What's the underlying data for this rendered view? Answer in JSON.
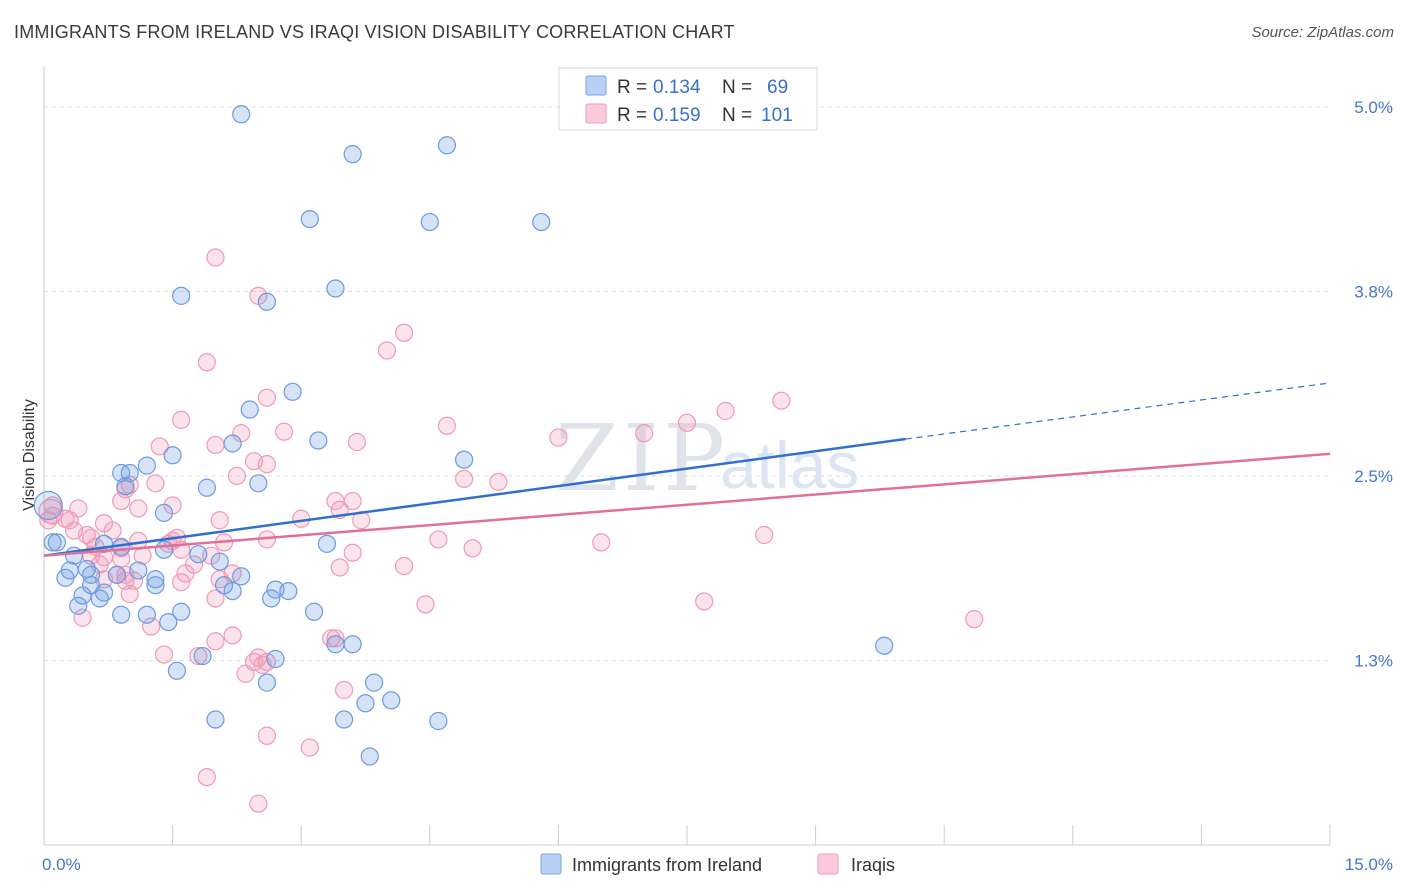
{
  "title": "IMMIGRANTS FROM IRELAND VS IRAQI VISION DISABILITY CORRELATION CHART",
  "source": "Source: ZipAtlas.com",
  "watermark": {
    "zip": "ZIP",
    "atlas": "atlas"
  },
  "legend": {
    "rows": [
      {
        "r_label": "R = ",
        "r_value": "0.134",
        "n_label": "N = ",
        "n_value": "69"
      },
      {
        "r_label": "R = ",
        "r_value": "0.159",
        "n_label": "N = ",
        "n_value": "101"
      }
    ]
  },
  "chart_data": {
    "type": "scatter",
    "title": "IMMIGRANTS FROM IRELAND VS IRAQI VISION DISABILITY CORRELATION CHART",
    "xlabel": "",
    "ylabel": "Vision Disability",
    "xlim": [
      0,
      15
    ],
    "ylim": [
      0,
      5.25
    ],
    "x_tick_labels": [
      {
        "value": 0,
        "label": "0.0%"
      },
      {
        "value": 15,
        "label": "15.0%"
      }
    ],
    "y_ticks": [
      {
        "value": 1.25,
        "label": "1.3%"
      },
      {
        "value": 2.5,
        "label": "2.5%"
      },
      {
        "value": 3.75,
        "label": "3.8%"
      },
      {
        "value": 5.0,
        "label": "5.0%"
      }
    ],
    "grid": "horizontal dashed",
    "legend_position": "top-center",
    "colors": {
      "ireland": "#6b9be0",
      "iraqis": "#f09ab8",
      "ireland_line": "#2f6fcf",
      "iraqis_line": "#e0709a"
    },
    "series": [
      {
        "name": "Immigrants from Ireland",
        "trend": {
          "x": [
            0,
            10.05
          ],
          "y": [
            1.96,
            2.75
          ],
          "dashed_to": [
            15,
            3.13
          ]
        },
        "points": [
          [
            2.3,
            4.95
          ],
          [
            3.6,
            4.68
          ],
          [
            4.7,
            4.74
          ],
          [
            3.1,
            4.24
          ],
          [
            4.5,
            4.22
          ],
          [
            5.8,
            4.22
          ],
          [
            3.4,
            3.77
          ],
          [
            1.6,
            3.72
          ],
          [
            2.6,
            3.68
          ],
          [
            2.9,
            3.07
          ],
          [
            2.4,
            2.95
          ],
          [
            3.2,
            2.74
          ],
          [
            2.2,
            2.72
          ],
          [
            1.5,
            2.64
          ],
          [
            4.9,
            2.61
          ],
          [
            1.2,
            2.57
          ],
          [
            1.0,
            2.52
          ],
          [
            0.9,
            2.52
          ],
          [
            2.5,
            2.45
          ],
          [
            1.9,
            2.42
          ],
          [
            0.95,
            2.43
          ],
          [
            1.4,
            2.25
          ],
          [
            0.15,
            2.05
          ],
          [
            0.1,
            2.05
          ],
          [
            0.35,
            1.96
          ],
          [
            0.7,
            2.04
          ],
          [
            0.9,
            2.02
          ],
          [
            1.4,
            2.0
          ],
          [
            1.8,
            1.97
          ],
          [
            3.3,
            2.04
          ],
          [
            2.05,
            1.92
          ],
          [
            0.3,
            1.86
          ],
          [
            0.5,
            1.87
          ],
          [
            0.55,
            1.83
          ],
          [
            1.1,
            1.86
          ],
          [
            0.25,
            1.81
          ],
          [
            2.3,
            1.82
          ],
          [
            1.3,
            1.8
          ],
          [
            0.85,
            1.83
          ],
          [
            0.55,
            1.76
          ],
          [
            1.3,
            1.76
          ],
          [
            2.1,
            1.76
          ],
          [
            2.7,
            1.73
          ],
          [
            2.85,
            1.72
          ],
          [
            0.45,
            1.69
          ],
          [
            0.7,
            1.71
          ],
          [
            0.65,
            1.67
          ],
          [
            2.2,
            1.72
          ],
          [
            2.65,
            1.67
          ],
          [
            0.4,
            1.62
          ],
          [
            0.9,
            1.56
          ],
          [
            1.2,
            1.56
          ],
          [
            1.6,
            1.58
          ],
          [
            3.15,
            1.58
          ],
          [
            1.45,
            1.51
          ],
          [
            3.4,
            1.36
          ],
          [
            3.6,
            1.36
          ],
          [
            9.8,
            1.35
          ],
          [
            1.85,
            1.28
          ],
          [
            2.7,
            1.26
          ],
          [
            1.55,
            1.18
          ],
          [
            3.85,
            1.1
          ],
          [
            2.6,
            1.1
          ],
          [
            4.05,
            0.98
          ],
          [
            3.75,
            0.96
          ],
          [
            2.0,
            0.85
          ],
          [
            3.5,
            0.85
          ],
          [
            4.6,
            0.84
          ],
          [
            3.8,
            0.6
          ]
        ]
      },
      {
        "name": "Iraqis",
        "trend": {
          "x": [
            0,
            15
          ],
          "y": [
            1.96,
            2.65
          ]
        },
        "points": [
          [
            2.0,
            3.98
          ],
          [
            2.5,
            3.72
          ],
          [
            4.2,
            3.47
          ],
          [
            4.0,
            3.35
          ],
          [
            1.9,
            3.27
          ],
          [
            2.6,
            3.03
          ],
          [
            8.6,
            3.01
          ],
          [
            7.95,
            2.94
          ],
          [
            1.6,
            2.88
          ],
          [
            4.7,
            2.84
          ],
          [
            7.5,
            2.86
          ],
          [
            2.3,
            2.79
          ],
          [
            2.8,
            2.8
          ],
          [
            6.0,
            2.76
          ],
          [
            7.0,
            2.79
          ],
          [
            3.65,
            2.73
          ],
          [
            1.35,
            2.7
          ],
          [
            2.0,
            2.71
          ],
          [
            2.45,
            2.6
          ],
          [
            2.6,
            2.58
          ],
          [
            2.25,
            2.5
          ],
          [
            4.9,
            2.48
          ],
          [
            5.3,
            2.46
          ],
          [
            1.3,
            2.45
          ],
          [
            1.0,
            2.44
          ],
          [
            0.95,
            2.41
          ],
          [
            0.9,
            2.33
          ],
          [
            0.1,
            2.3
          ],
          [
            1.5,
            2.3
          ],
          [
            1.1,
            2.28
          ],
          [
            3.4,
            2.33
          ],
          [
            3.6,
            2.33
          ],
          [
            0.4,
            2.28
          ],
          [
            3.45,
            2.27
          ],
          [
            0.1,
            2.23
          ],
          [
            0.25,
            2.21
          ],
          [
            0.05,
            2.2
          ],
          [
            0.3,
            2.2
          ],
          [
            3.7,
            2.2
          ],
          [
            2.05,
            2.2
          ],
          [
            3.0,
            2.21
          ],
          [
            0.7,
            2.18
          ],
          [
            0.35,
            2.13
          ],
          [
            0.8,
            2.13
          ],
          [
            0.5,
            2.1
          ],
          [
            0.55,
            2.08
          ],
          [
            1.55,
            2.08
          ],
          [
            1.5,
            2.06
          ],
          [
            1.1,
            2.06
          ],
          [
            1.45,
            2.04
          ],
          [
            2.1,
            2.05
          ],
          [
            2.6,
            2.07
          ],
          [
            4.6,
            2.07
          ],
          [
            8.4,
            2.1
          ],
          [
            6.5,
            2.05
          ],
          [
            0.6,
            2.02
          ],
          [
            0.9,
            2.01
          ],
          [
            5.0,
            2.01
          ],
          [
            1.6,
            2.0
          ],
          [
            3.6,
            1.98
          ],
          [
            0.55,
            1.96
          ],
          [
            0.7,
            1.95
          ],
          [
            1.15,
            1.96
          ],
          [
            1.95,
            1.96
          ],
          [
            0.9,
            1.94
          ],
          [
            0.65,
            1.9
          ],
          [
            4.2,
            1.89
          ],
          [
            3.45,
            1.88
          ],
          [
            1.65,
            1.84
          ],
          [
            0.85,
            1.83
          ],
          [
            0.95,
            1.83
          ],
          [
            2.2,
            1.84
          ],
          [
            0.7,
            1.8
          ],
          [
            0.95,
            1.79
          ],
          [
            1.6,
            1.78
          ],
          [
            1.05,
            1.79
          ],
          [
            2.05,
            1.8
          ],
          [
            2.0,
            1.67
          ],
          [
            7.7,
            1.65
          ],
          [
            1.0,
            1.7
          ],
          [
            4.45,
            1.63
          ],
          [
            0.45,
            1.54
          ],
          [
            10.85,
            1.53
          ],
          [
            1.25,
            1.48
          ],
          [
            2.2,
            1.42
          ],
          [
            3.35,
            1.4
          ],
          [
            3.4,
            1.4
          ],
          [
            2.0,
            1.38
          ],
          [
            1.4,
            1.29
          ],
          [
            1.8,
            1.28
          ],
          [
            2.5,
            1.27
          ],
          [
            2.6,
            1.24
          ],
          [
            2.45,
            1.24
          ],
          [
            2.55,
            1.22
          ],
          [
            2.35,
            1.16
          ],
          [
            2.6,
            0.74
          ],
          [
            3.1,
            0.66
          ],
          [
            1.9,
            0.46
          ],
          [
            2.5,
            0.28
          ],
          [
            3.5,
            1.05
          ],
          [
            1.75,
            1.9
          ]
        ]
      }
    ]
  },
  "bottom_legend": [
    {
      "label": "Immigrants from Ireland"
    },
    {
      "label": "Iraqis"
    }
  ]
}
